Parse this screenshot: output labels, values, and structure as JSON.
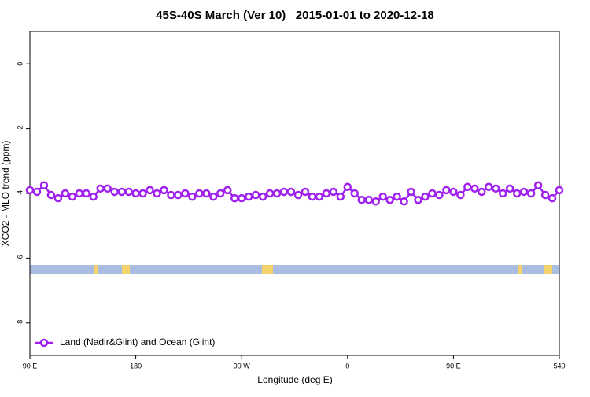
{
  "chart_data": {
    "type": "line",
    "title": "45S-40S March (Ver 10)   2015-01-01 to 2020-12-18",
    "xlabel": "Longitude (deg E)",
    "ylabel": "XCO2 - MLO trend (ppm)",
    "x": [
      90,
      96,
      102,
      108,
      114,
      120,
      126,
      132,
      138,
      144,
      150,
      156,
      162,
      168,
      174,
      180,
      186,
      192,
      198,
      204,
      210,
      216,
      222,
      228,
      234,
      240,
      246,
      252,
      258,
      264,
      270,
      276,
      282,
      288,
      294,
      300,
      306,
      312,
      318,
      324,
      330,
      336,
      342,
      348,
      354,
      360,
      366,
      372,
      378,
      384,
      390,
      396,
      402,
      408,
      414,
      420,
      426,
      432,
      438,
      444,
      450,
      456,
      462,
      468,
      474,
      480,
      486,
      492,
      498,
      504,
      510,
      516,
      522,
      528,
      534,
      540
    ],
    "series": [
      {
        "name": "Land (Nadir&Glint) and Ocean (Glint)",
        "color": "#a020f0",
        "values": [
          -3.9,
          -3.95,
          -3.75,
          -4.05,
          -4.15,
          -4.0,
          -4.1,
          -4.0,
          -4.0,
          -4.1,
          -3.85,
          -3.85,
          -3.95,
          -3.95,
          -3.95,
          -4.0,
          -4.0,
          -3.9,
          -4.0,
          -3.9,
          -4.05,
          -4.05,
          -4.0,
          -4.1,
          -4.0,
          -4.0,
          -4.1,
          -4.0,
          -3.9,
          -4.15,
          -4.15,
          -4.1,
          -4.05,
          -4.1,
          -4.0,
          -4.0,
          -3.95,
          -3.95,
          -4.05,
          -3.95,
          -4.1,
          -4.1,
          -4.0,
          -3.95,
          -4.1,
          -3.8,
          -4.0,
          -4.2,
          -4.2,
          -4.25,
          -4.1,
          -4.2,
          -4.1,
          -4.25,
          -3.95,
          -4.2,
          -4.1,
          -4.0,
          -4.05,
          -3.9,
          -3.95,
          -4.05,
          -3.8,
          -3.85,
          -3.95,
          -3.8,
          -3.85,
          -4.0,
          -3.85,
          -4.0,
          -3.95,
          -4.0,
          -3.75,
          -4.05,
          -4.15,
          -3.9
        ]
      }
    ],
    "xlim": [
      90,
      540
    ],
    "xticks": [
      {
        "value": 90,
        "label": "90 E"
      },
      180,
      {
        "value": 270,
        "label": "90 W"
      },
      {
        "value": 360,
        "label": "0"
      },
      {
        "value": 450,
        "label": "90 E"
      },
      540
    ],
    "ylim": [
      -9,
      1
    ],
    "yticks": [
      0,
      -2,
      -4,
      -6,
      -8
    ],
    "legend": "bottom-left"
  }
}
